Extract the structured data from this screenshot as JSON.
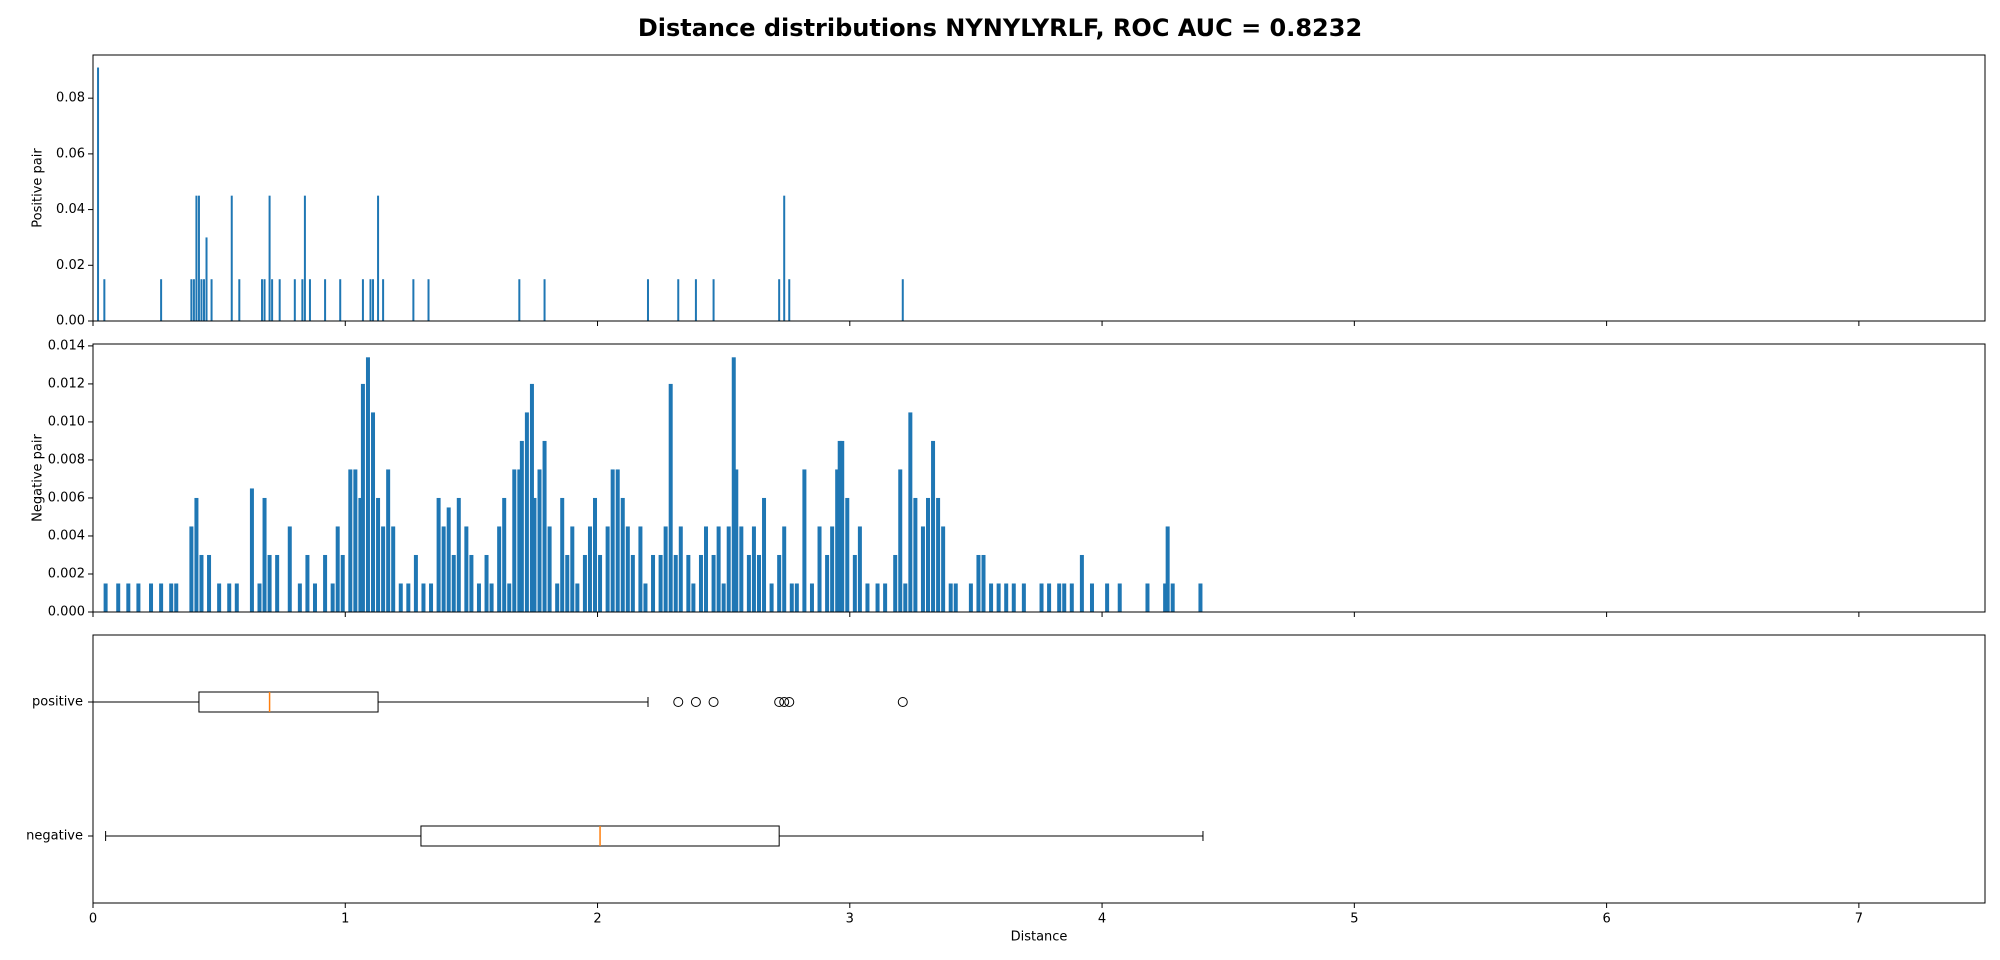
{
  "title": "Distance distributions NYNYLYRLF, ROC AUC = 0.8232",
  "chart_data": [
    {
      "type": "bar",
      "ylabel": "Positive pair",
      "color": "#1f77b4",
      "x": [
        0.02,
        0.045,
        0.27,
        0.39,
        0.4,
        0.41,
        0.42,
        0.43,
        0.44,
        0.45,
        0.47,
        0.55,
        0.58,
        0.67,
        0.68,
        0.7,
        0.71,
        0.74,
        0.8,
        0.83,
        0.84,
        0.86,
        0.92,
        0.98,
        1.07,
        1.1,
        1.11,
        1.13,
        1.15,
        1.27,
        1.33,
        1.69,
        1.79,
        2.2,
        2.32,
        2.39,
        2.46,
        2.72,
        2.74,
        2.76,
        3.21
      ],
      "values": [
        0.091,
        0.015,
        0.015,
        0.015,
        0.015,
        0.045,
        0.045,
        0.015,
        0.015,
        0.03,
        0.015,
        0.045,
        0.015,
        0.015,
        0.015,
        0.045,
        0.015,
        0.015,
        0.015,
        0.015,
        0.045,
        0.015,
        0.015,
        0.015,
        0.015,
        0.015,
        0.015,
        0.045,
        0.015,
        0.015,
        0.015,
        0.015,
        0.015,
        0.015,
        0.015,
        0.015,
        0.015,
        0.015,
        0.045,
        0.015,
        0.015
      ],
      "xlim": [
        0,
        7.5
      ],
      "xticks": [
        0,
        1,
        2,
        3,
        4,
        5,
        6,
        7
      ],
      "ylim": [
        0,
        0.0955
      ],
      "yticks": [
        {
          "value": 0,
          "label": "0.00"
        },
        {
          "value": 0.02,
          "label": "0.02"
        },
        {
          "value": 0.04,
          "label": "0.04"
        },
        {
          "value": 0.06,
          "label": "0.06"
        },
        {
          "value": 0.08,
          "label": "0.08"
        }
      ]
    },
    {
      "type": "bar",
      "ylabel": "Negative pair",
      "color": "#1f77b4",
      "x": [
        0.05,
        0.1,
        0.14,
        0.18,
        0.23,
        0.27,
        0.31,
        0.33,
        0.39,
        0.41,
        0.43,
        0.46,
        0.5,
        0.54,
        0.57,
        0.63,
        0.66,
        0.68,
        0.7,
        0.73,
        0.78,
        0.82,
        0.85,
        0.88,
        0.92,
        0.95,
        0.97,
        0.99,
        1.02,
        1.04,
        1.06,
        1.07,
        1.09,
        1.11,
        1.13,
        1.15,
        1.17,
        1.19,
        1.22,
        1.25,
        1.28,
        1.31,
        1.34,
        1.37,
        1.39,
        1.41,
        1.43,
        1.45,
        1.48,
        1.5,
        1.53,
        1.56,
        1.58,
        1.61,
        1.63,
        1.65,
        1.67,
        1.69,
        1.7,
        1.72,
        1.74,
        1.75,
        1.77,
        1.79,
        1.81,
        1.84,
        1.86,
        1.88,
        1.9,
        1.92,
        1.95,
        1.97,
        1.99,
        2.01,
        2.04,
        2.06,
        2.08,
        2.1,
        2.12,
        2.14,
        2.17,
        2.19,
        2.22,
        2.25,
        2.27,
        2.29,
        2.31,
        2.33,
        2.36,
        2.38,
        2.41,
        2.43,
        2.46,
        2.48,
        2.5,
        2.52,
        2.54,
        2.55,
        2.57,
        2.6,
        2.62,
        2.64,
        2.66,
        2.69,
        2.72,
        2.74,
        2.77,
        2.79,
        2.82,
        2.85,
        2.88,
        2.91,
        2.93,
        2.95,
        2.96,
        2.97,
        2.99,
        3.02,
        3.04,
        3.07,
        3.11,
        3.14,
        3.18,
        3.2,
        3.22,
        3.24,
        3.26,
        3.29,
        3.31,
        3.33,
        3.35,
        3.37,
        3.4,
        3.42,
        3.48,
        3.51,
        3.53,
        3.56,
        3.59,
        3.62,
        3.65,
        3.69,
        3.76,
        3.79,
        3.83,
        3.85,
        3.88,
        3.92,
        3.96,
        4.02,
        4.07,
        4.18,
        4.25,
        4.26,
        4.28,
        4.39
      ],
      "values": [
        0.0015,
        0.0015,
        0.0015,
        0.0015,
        0.0015,
        0.0015,
        0.0015,
        0.0015,
        0.0045,
        0.006,
        0.003,
        0.003,
        0.0015,
        0.0015,
        0.0015,
        0.0065,
        0.0015,
        0.006,
        0.003,
        0.003,
        0.0045,
        0.0015,
        0.003,
        0.0015,
        0.003,
        0.0015,
        0.0045,
        0.003,
        0.0075,
        0.0075,
        0.006,
        0.012,
        0.0134,
        0.0105,
        0.006,
        0.0045,
        0.0075,
        0.0045,
        0.0015,
        0.0015,
        0.003,
        0.0015,
        0.0015,
        0.006,
        0.0045,
        0.0055,
        0.003,
        0.006,
        0.0045,
        0.003,
        0.0015,
        0.003,
        0.0015,
        0.0045,
        0.006,
        0.0015,
        0.0075,
        0.0075,
        0.009,
        0.0105,
        0.012,
        0.006,
        0.0075,
        0.009,
        0.0045,
        0.0015,
        0.006,
        0.003,
        0.0045,
        0.0015,
        0.003,
        0.0045,
        0.006,
        0.003,
        0.0045,
        0.0075,
        0.0075,
        0.006,
        0.0045,
        0.003,
        0.0045,
        0.0015,
        0.003,
        0.003,
        0.0045,
        0.012,
        0.003,
        0.0045,
        0.003,
        0.0015,
        0.003,
        0.0045,
        0.003,
        0.0045,
        0.0015,
        0.0045,
        0.0134,
        0.0075,
        0.0045,
        0.003,
        0.0045,
        0.003,
        0.006,
        0.0015,
        0.003,
        0.0045,
        0.0015,
        0.0015,
        0.0075,
        0.0015,
        0.0045,
        0.003,
        0.0045,
        0.0075,
        0.009,
        0.009,
        0.006,
        0.003,
        0.0045,
        0.0015,
        0.0015,
        0.0015,
        0.003,
        0.0075,
        0.0015,
        0.0105,
        0.006,
        0.0045,
        0.006,
        0.009,
        0.006,
        0.0045,
        0.0015,
        0.0015,
        0.0015,
        0.003,
        0.003,
        0.0015,
        0.0015,
        0.0015,
        0.0015,
        0.0015,
        0.0015,
        0.0015,
        0.0015,
        0.0015,
        0.0015,
        0.003,
        0.0015,
        0.0015,
        0.0015,
        0.0015,
        0.0015,
        0.0045,
        0.0015,
        0.0015
      ],
      "xlim": [
        0,
        7.5
      ],
      "xticks": [
        0,
        1,
        2,
        3,
        4,
        5,
        6,
        7
      ],
      "ylim": [
        0,
        0.0141
      ],
      "yticks": [
        {
          "value": 0,
          "label": "0.000"
        },
        {
          "value": 0.002,
          "label": "0.002"
        },
        {
          "value": 0.004,
          "label": "0.004"
        },
        {
          "value": 0.006,
          "label": "0.006"
        },
        {
          "value": 0.008,
          "label": "0.008"
        },
        {
          "value": 0.01,
          "label": "0.010"
        },
        {
          "value": 0.012,
          "label": "0.012"
        },
        {
          "value": 0.014,
          "label": "0.014"
        }
      ]
    },
    {
      "type": "box",
      "xlabel": "Distance",
      "color": "#000000",
      "median_color": "#ff7f0e",
      "categories": [
        "positive",
        "negative"
      ],
      "boxes": [
        {
          "whislo": 0,
          "q1": 0.42,
          "med": 0.7,
          "q3": 1.13,
          "whishi": 2.2,
          "fliers": [
            2.32,
            2.39,
            2.46,
            2.72,
            2.74,
            2.76,
            3.21
          ]
        },
        {
          "whislo": 0.05,
          "q1": 1.3,
          "med": 2.01,
          "q3": 2.72,
          "whishi": 4.4,
          "fliers": []
        }
      ],
      "xlim": [
        0,
        7.5
      ],
      "xticks": [
        0,
        1,
        2,
        3,
        4,
        5,
        6,
        7
      ]
    }
  ]
}
